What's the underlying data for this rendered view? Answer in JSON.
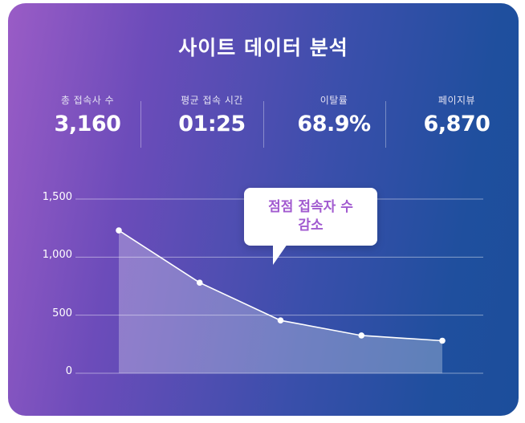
{
  "title": "사이트 데이터 분석",
  "stats": [
    {
      "label": "총 접속사 수",
      "value": "3,160"
    },
    {
      "label": "평균 접속 시간",
      "value": "01:25"
    },
    {
      "label": "이탈률",
      "value": "68.9%"
    },
    {
      "label": "페이지뷰",
      "value": "6,870"
    }
  ],
  "callout": {
    "line1": "점점 접속자 수",
    "line2": "감소"
  },
  "colors": {
    "line": "#ffffff",
    "area": "rgba(255,255,255,0.28)",
    "callout_text": "#a25bd0"
  },
  "chart_data": {
    "type": "area",
    "y_ticks": [
      "1,500",
      "1,000",
      "500",
      "0"
    ],
    "ylim": [
      0,
      1500
    ],
    "grid": true,
    "series": [
      {
        "values": [
          1230,
          780,
          455,
          325,
          280
        ]
      }
    ]
  }
}
